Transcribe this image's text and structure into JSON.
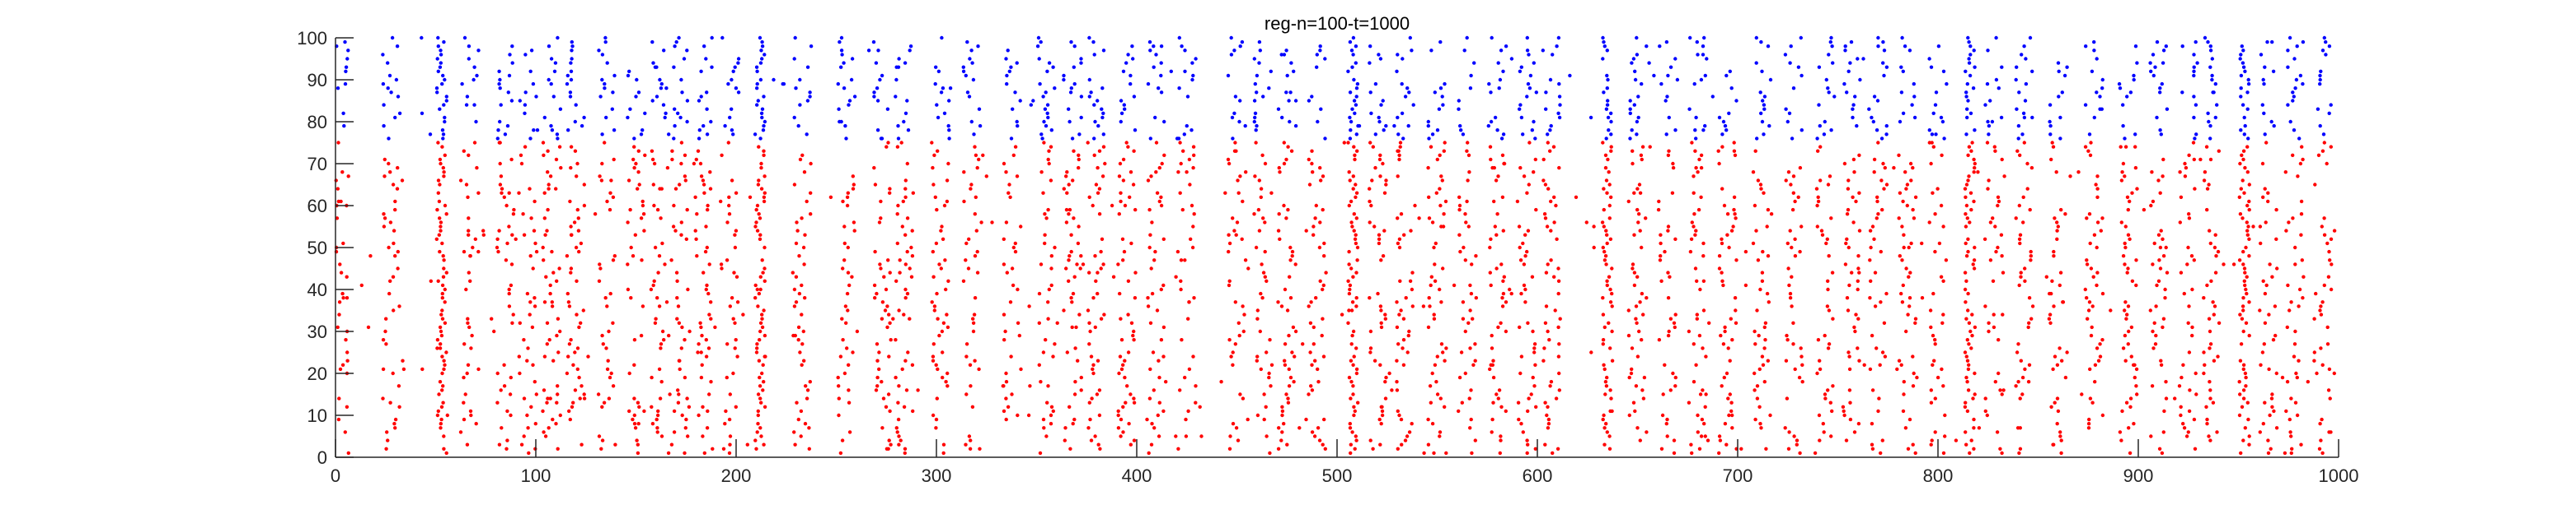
{
  "chart_data": {
    "type": "scatter",
    "title": "reg-n=100-t=1000",
    "xlabel": "",
    "ylabel": "",
    "xlim": [
      0,
      1000
    ],
    "ylim": [
      0,
      100
    ],
    "x_ticks": [
      0,
      100,
      200,
      300,
      400,
      500,
      600,
      700,
      800,
      900,
      1000
    ],
    "y_ticks": [
      0,
      10,
      20,
      30,
      40,
      50,
      60,
      70,
      80,
      90,
      100
    ],
    "grid": false,
    "legend": "none",
    "marker": "dot",
    "neurons": 100,
    "duration": 1000,
    "series": [
      {
        "color": "#ff0000",
        "neuron_range": [
          1,
          75
        ]
      },
      {
        "color": "#0000ff",
        "neuron_range": [
          76,
          100
        ]
      }
    ],
    "burst_times": [
      2,
      28,
      53,
      67,
      85,
      96,
      108,
      120,
      135,
      150,
      162,
      172,
      184,
      197,
      212,
      233,
      255,
      273,
      284,
      302,
      318,
      338,
      355,
      368,
      380,
      395,
      410,
      425,
      450,
      463,
      475,
      490,
      508,
      520,
      534,
      550,
      565,
      580,
      595,
      607,
      635,
      650,
      665,
      680,
      695,
      712,
      728,
      743,
      757,
      770,
      785,
      800,
      816,
      828,
      843,
      860,
      878,
      895,
      910,
      925,
      936,
      953,
      965,
      978,
      992
    ],
    "highlighted_bursts": [
      53,
      212,
      508,
      635,
      816,
      953
    ]
  }
}
